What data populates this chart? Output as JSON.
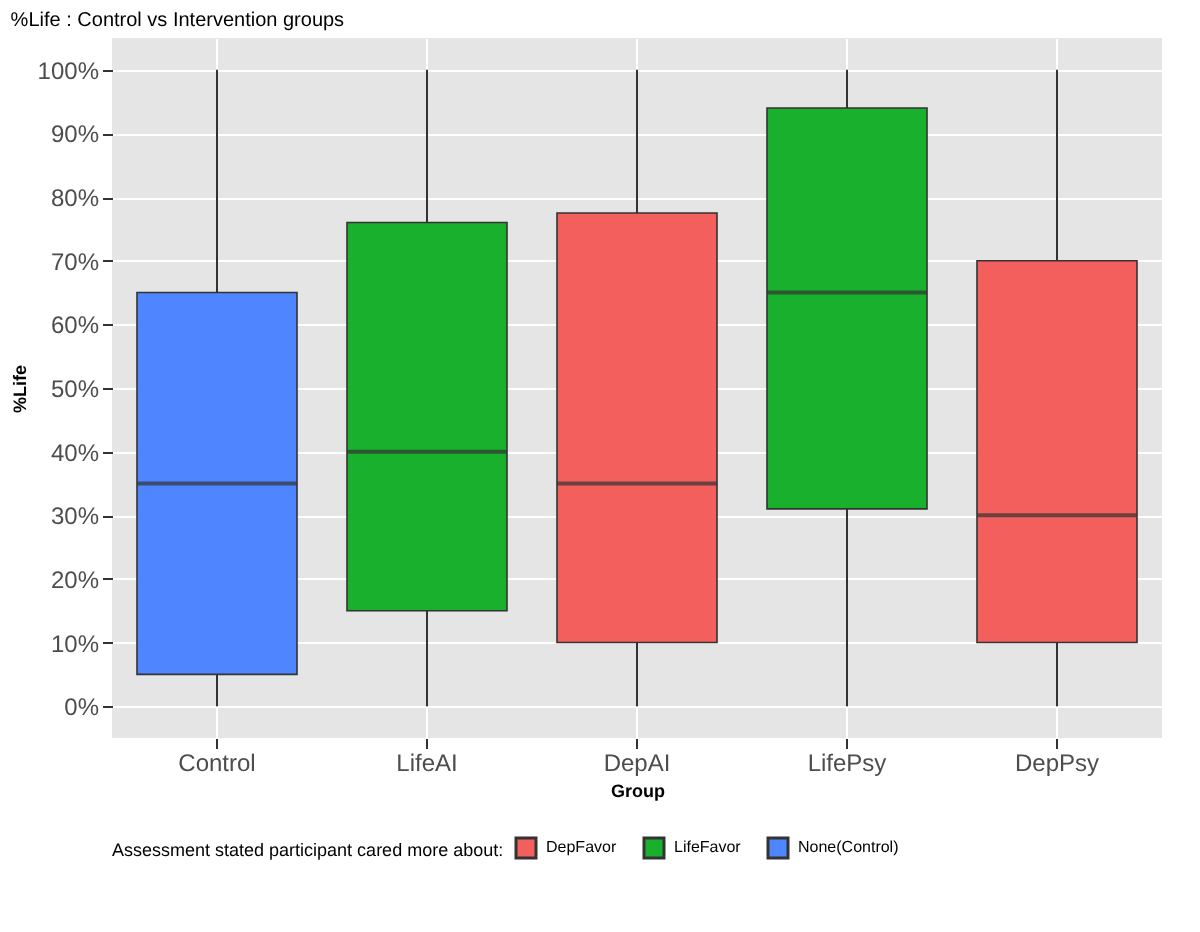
{
  "chart_data": {
    "type": "box",
    "title": "%Life : Control vs Intervention groups",
    "xlabel": "Group",
    "ylabel": "%Life",
    "legend_title": "Assessment stated participant cared more about:",
    "legend": "bottom",
    "grid": true,
    "categories": [
      "Control",
      "LifeAI",
      "DepAI",
      "LifePsy",
      "DepPsy"
    ],
    "ylim": [
      -5,
      105
    ],
    "yticks": [
      {
        "value": 0,
        "label": "0%"
      },
      {
        "value": 10,
        "label": "10%"
      },
      {
        "value": 20,
        "label": "20%"
      },
      {
        "value": 30,
        "label": "30%"
      },
      {
        "value": 40,
        "label": "40%"
      },
      {
        "value": 50,
        "label": "50%"
      },
      {
        "value": 60,
        "label": "60%"
      },
      {
        "value": 70,
        "label": "70%"
      },
      {
        "value": 80,
        "label": "80%"
      },
      {
        "value": 90,
        "label": "90%"
      },
      {
        "value": 100,
        "label": "100%"
      }
    ],
    "series": [
      {
        "name": "DepFavor",
        "color": "#f25f5c",
        "boxes": [
          null,
          null,
          {
            "low": 0,
            "q1": 10,
            "median": 35,
            "q3": 77.5,
            "high": 100
          },
          null,
          {
            "low": 0,
            "q1": 10,
            "median": 30,
            "q3": 70,
            "high": 100
          }
        ]
      },
      {
        "name": "LifeFavor",
        "color": "#19b02d",
        "boxes": [
          null,
          {
            "low": 0,
            "q1": 15,
            "median": 40,
            "q3": 76,
            "high": 100
          },
          null,
          {
            "low": 0,
            "q1": 31,
            "median": 65,
            "q3": 94,
            "high": 100
          },
          null
        ]
      },
      {
        "name": "None(Control)",
        "color": "#4f86ff",
        "boxes": [
          {
            "low": 0,
            "q1": 5,
            "median": 35,
            "q3": 65,
            "high": 100
          },
          null,
          null,
          null,
          null
        ]
      }
    ]
  }
}
